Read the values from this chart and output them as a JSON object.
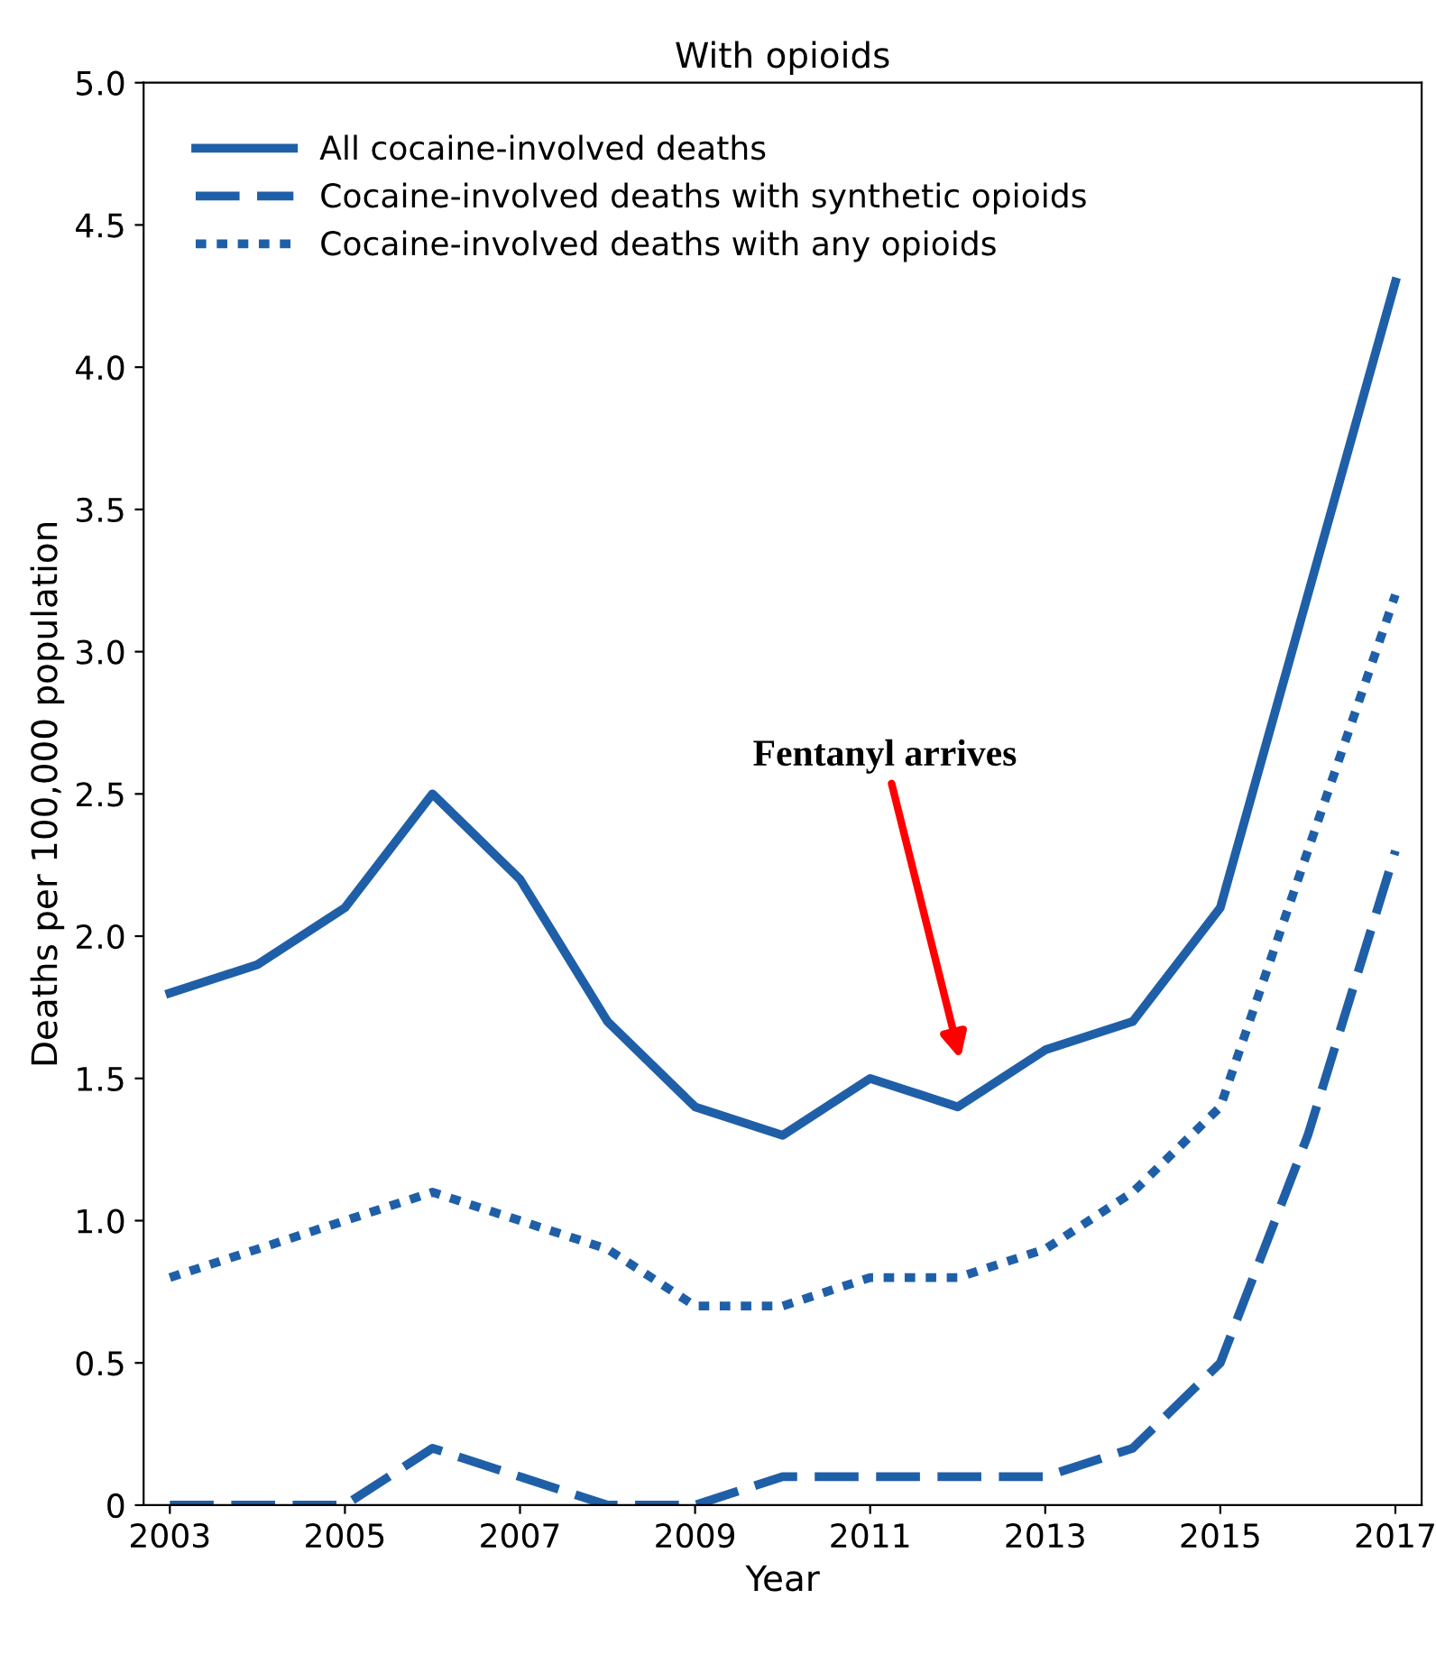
{
  "chart_data": {
    "type": "line",
    "title": "With opioids",
    "xlabel": "Year",
    "ylabel": "Deaths per 100,000 population",
    "x": [
      2003,
      2004,
      2005,
      2006,
      2007,
      2008,
      2009,
      2010,
      2011,
      2012,
      2013,
      2014,
      2015,
      2016,
      2017
    ],
    "series": [
      {
        "name": "All cocaine-involved deaths",
        "color": "#1f5fa8",
        "line_style": "solid",
        "values": [
          1.8,
          1.9,
          2.1,
          2.5,
          2.2,
          1.7,
          1.4,
          1.3,
          1.5,
          1.4,
          1.6,
          1.7,
          2.1,
          3.2,
          4.3
        ]
      },
      {
        "name": "Cocaine-involved deaths with synthetic opioids",
        "color": "#1f5fa8",
        "line_style": "dashed",
        "values": [
          0,
          0,
          0,
          0.2,
          0.1,
          0,
          0,
          0.1,
          0.1,
          0.1,
          0.1,
          0.2,
          0.5,
          1.3,
          2.3
        ]
      },
      {
        "name": "Cocaine-involved deaths with any opioids",
        "color": "#1f5fa8",
        "line_style": "dotted",
        "values": [
          0.8,
          0.9,
          1.0,
          1.1,
          1.0,
          0.9,
          0.7,
          0.7,
          0.8,
          0.8,
          0.9,
          1.1,
          1.4,
          2.3,
          3.2
        ]
      }
    ],
    "annotations": [
      "Fentanyl arrives"
    ],
    "xlim": [
      2002.7,
      2017.3
    ],
    "xticks": [
      2003,
      2005,
      2007,
      2009,
      2011,
      2013,
      2015,
      2017
    ],
    "ylim": [
      0,
      5
    ],
    "yticks": [
      0,
      {
        "value": 0.5,
        "label": "0.5"
      },
      {
        "value": 1,
        "label": "1.0"
      },
      {
        "value": 1.5,
        "label": "1.5"
      },
      {
        "value": 2,
        "label": "2.0"
      },
      {
        "value": 2.5,
        "label": "2.5"
      },
      {
        "value": 3,
        "label": "3.0"
      },
      {
        "value": 3.5,
        "label": "3.5"
      },
      {
        "value": 4,
        "label": "4.0"
      },
      {
        "value": 4.5,
        "label": "4.5"
      },
      {
        "value": 5,
        "label": "5.0"
      }
    ],
    "legend": "top left",
    "grid": false,
    "marker": "none"
  }
}
